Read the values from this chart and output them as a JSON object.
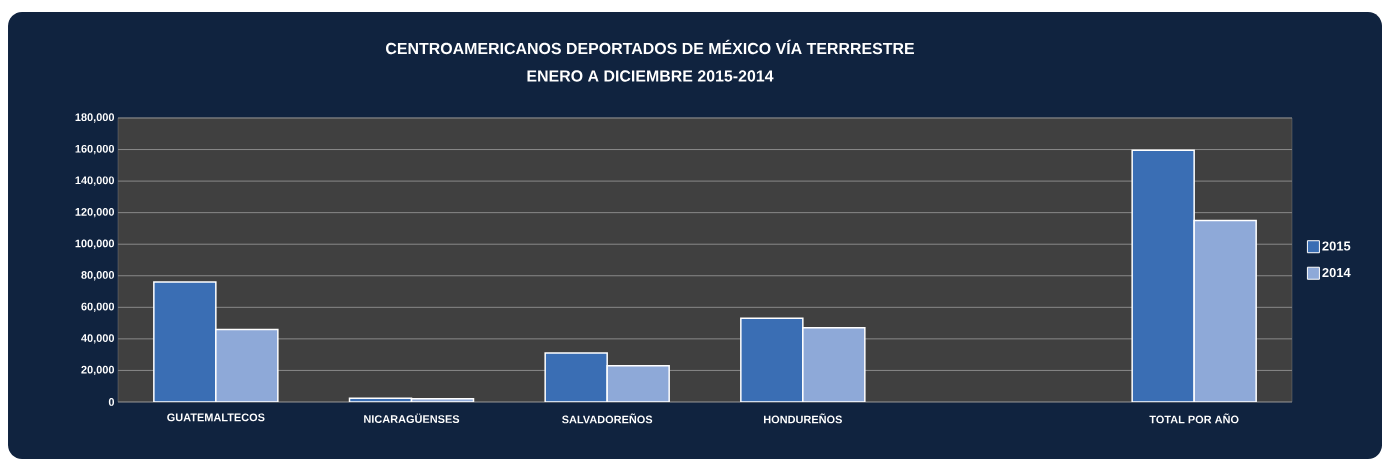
{
  "chart_data": {
    "type": "bar",
    "title": "CENTROAMERICANOS DEPORTADOS DE MÉXICO VÍA TERRRESTRE",
    "subtitle": "ENERO A DICIEMBRE 2015-2014",
    "categories": [
      "GUATEMALTECOS",
      "NICARAGÜENSES",
      "SALVADOREÑOS",
      "HONDUREÑOS",
      null,
      "TOTAL POR AÑO"
    ],
    "series": [
      {
        "name": "2015",
        "color": "#3a6eb4",
        "values": [
          76000,
          2300,
          31000,
          53000,
          null,
          159500
        ]
      },
      {
        "name": "2014",
        "color": "#8ea9d8",
        "values": [
          46000,
          2100,
          23000,
          47000,
          null,
          115000
        ]
      }
    ],
    "ylim": [
      0,
      180000
    ],
    "yticks": [
      {
        "value": 0,
        "label": "0"
      },
      {
        "value": 20000,
        "label": "20,000"
      },
      {
        "value": 40000,
        "label": "40,000"
      },
      {
        "value": 60000,
        "label": "60,000"
      },
      {
        "value": 80000,
        "label": "80,000"
      },
      {
        "value": 100000,
        "label": "100,000"
      },
      {
        "value": 120000,
        "label": "120,000"
      },
      {
        "value": 140000,
        "label": "140,000"
      },
      {
        "value": 160000,
        "label": "160,000"
      },
      {
        "value": 180000,
        "label": "180,000"
      }
    ],
    "grid": "y",
    "legend": "right"
  }
}
